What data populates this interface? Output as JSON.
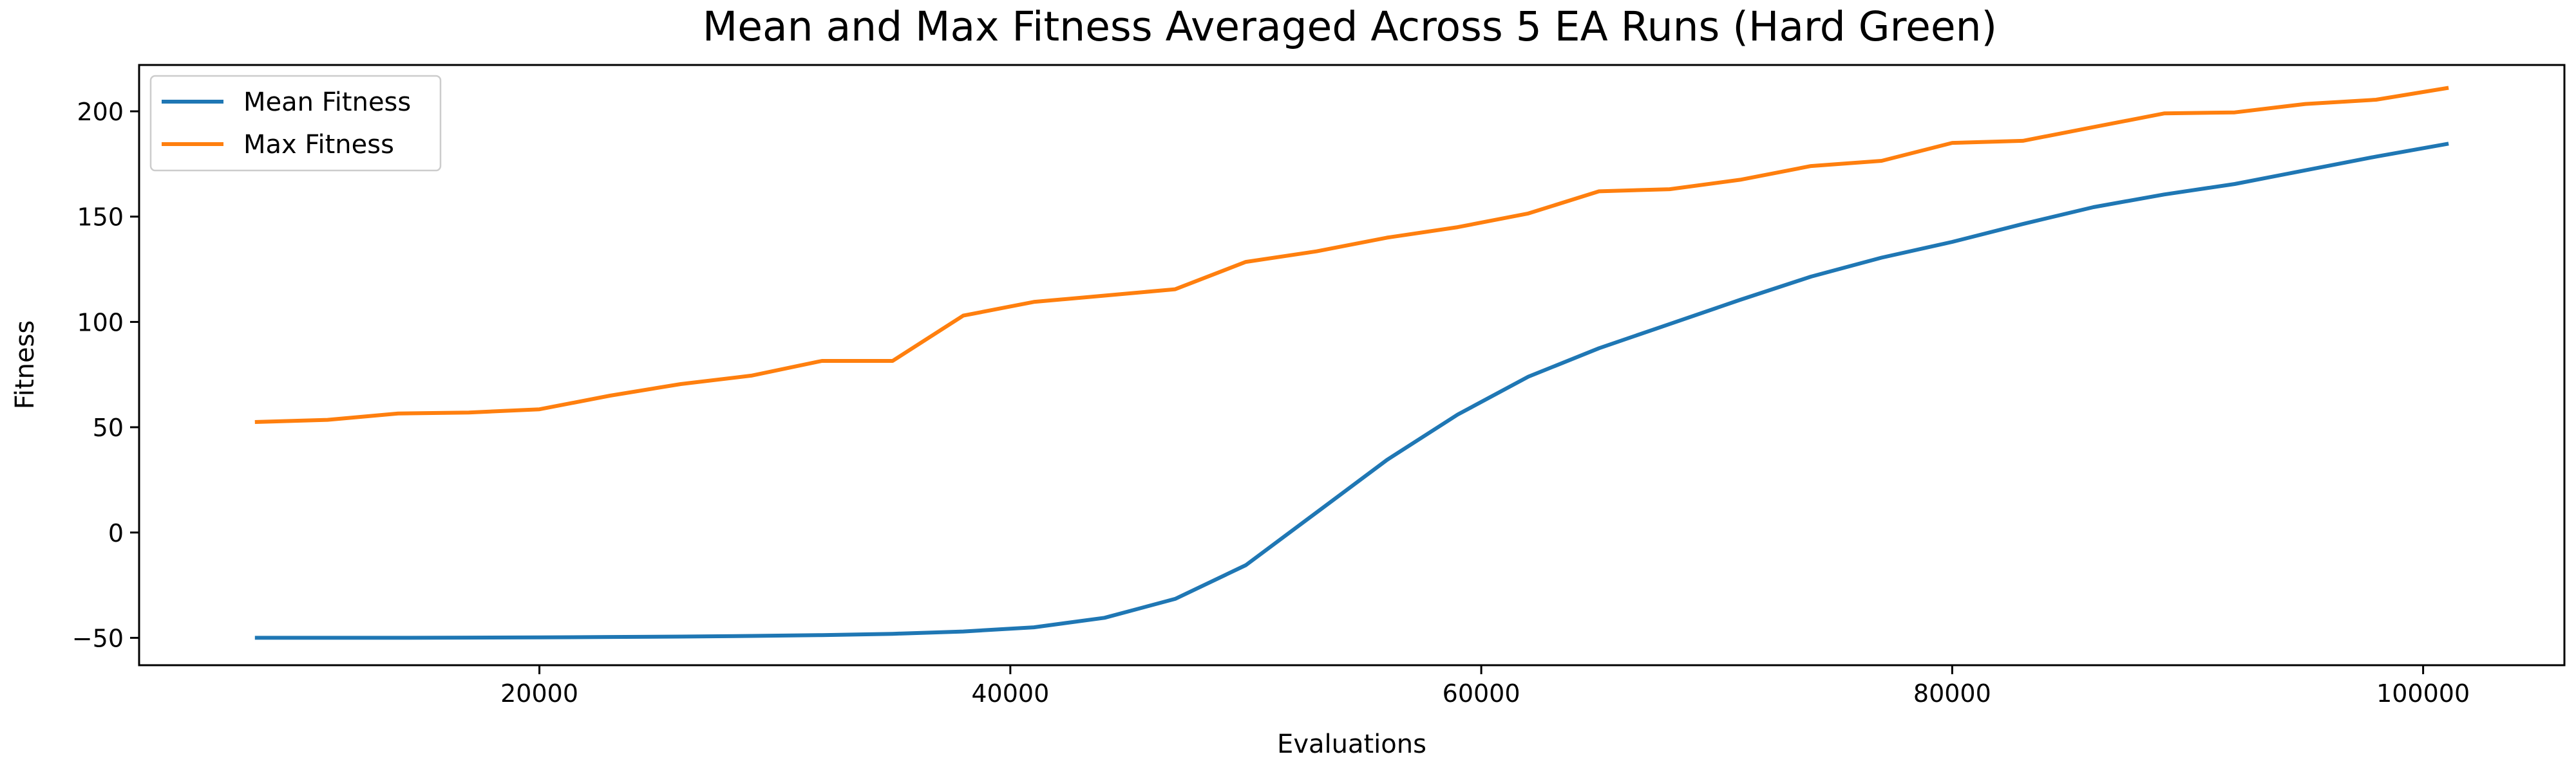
{
  "chart_data": {
    "type": "line",
    "title": "Mean and Max Fitness Averaged Across 5 EA Runs (Hard Green)",
    "xlabel": "Evaluations",
    "ylabel": "Fitness",
    "xlim": [
      3000,
      106000
    ],
    "ylim": [
      -63,
      222
    ],
    "xticks": [
      20000,
      40000,
      60000,
      80000,
      100000
    ],
    "xtick_labels": [
      "20000",
      "40000",
      "60000",
      "80000",
      "100000"
    ],
    "yticks": [
      -50,
      0,
      50,
      100,
      150,
      200
    ],
    "ytick_labels": [
      "−50",
      "0",
      "50",
      "100",
      "150",
      "200"
    ],
    "grid": false,
    "legend_position": "top-left",
    "x": [
      8000,
      11000,
      14000,
      17000,
      20000,
      23000,
      26000,
      29000,
      32000,
      35000,
      38000,
      41000,
      44000,
      47000,
      50000,
      53000,
      56000,
      59000,
      62000,
      65000,
      68000,
      71000,
      74000,
      77000,
      80000,
      83000,
      86000,
      89000,
      92000,
      95000,
      98000,
      101000
    ],
    "series": [
      {
        "name": "Mean Fitness",
        "color": "#1f77b4",
        "values": [
          -50,
          -50,
          -50,
          -49.9,
          -49.8,
          -49.6,
          -49.4,
          -49.1,
          -48.7,
          -48.1,
          -47,
          -45,
          -40.5,
          -31.5,
          -15.5,
          9.5,
          34.5,
          56,
          74,
          87.5,
          99,
          110.5,
          121.5,
          130.5,
          138,
          146.5,
          154.5,
          160.5,
          165.5,
          172,
          178.5,
          184.5
        ]
      },
      {
        "name": "Max Fitness",
        "color": "#ff7f0e",
        "values": [
          52.5,
          53.5,
          56.5,
          57,
          58.5,
          65,
          70.5,
          74.5,
          81.5,
          81.5,
          103,
          109.5,
          112.5,
          115.5,
          128.5,
          133.5,
          140,
          145,
          151.5,
          162,
          163,
          167.5,
          174,
          176.5,
          185,
          186,
          192.5,
          199,
          199.5,
          203.5,
          205.5,
          211
        ]
      }
    ]
  }
}
